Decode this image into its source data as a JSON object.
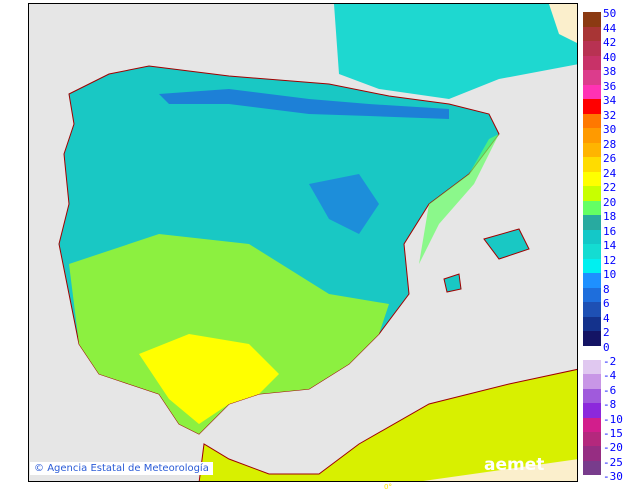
{
  "credit": "Agencia Estatal de Meteorología",
  "credit_icon": "copyright-icon",
  "logo": "aemet",
  "meridian_label": "0°",
  "colors": {
    "sea": "#e6e6e6",
    "borders": "#a00000",
    "france": "#fbefcc"
  },
  "legend": {
    "positive_labels": [
      "50",
      "44",
      "42",
      "40",
      "38",
      "36",
      "34",
      "32",
      "30",
      "28",
      "26",
      "24",
      "22",
      "20",
      "18",
      "16",
      "14",
      "12",
      "10",
      "8",
      "6",
      "4",
      "2",
      "0"
    ],
    "positive_colors": [
      "#8b3a12",
      "#a83535",
      "#b83252",
      "#c83268",
      "#dc3c8c",
      "#ff32b4",
      "#ff0000",
      "#ff7800",
      "#ff9a00",
      "#ffb400",
      "#ffdc00",
      "#ffff00",
      "#c8ff00",
      "#64ff64",
      "#28aaa0",
      "#14c8c8",
      "#14dcd2",
      "#00f0f0",
      "#1e90ff",
      "#1e6edc",
      "#1e50b4",
      "#14328c",
      "#141464"
    ],
    "negative_labels": [
      "-2",
      "-4",
      "-6",
      "-8",
      "-10",
      "-15",
      "-20",
      "-25",
      "-30"
    ],
    "negative_colors": [
      "#e0c8f0",
      "#c896e6",
      "#a05adc",
      "#8c28dc",
      "#d21e8c",
      "#b4287d",
      "#962d82",
      "#783c8c"
    ]
  }
}
